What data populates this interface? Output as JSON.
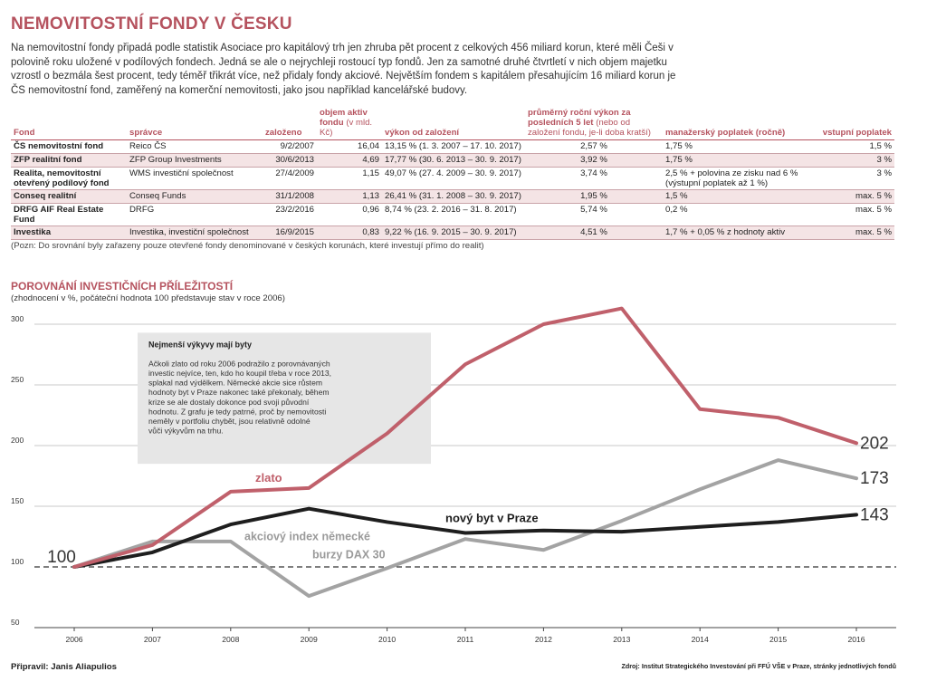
{
  "title": "NEMOVITOSTNÍ FONDY V ČESKU",
  "intro": "Na nemovitostní fondy připadá podle statistik Asociace pro kapitálový trh jen zhruba pět procent z celkových 456 miliard korun, které měli Češi v polovině roku uložené v podílových fondech. Jedná se ale o nejrychleji rostoucí typ fondů. Jen za samotné druhé čtvrtletí v nich objem majetku vzrostl o bezmála šest procent, tedy téměř třikrát více, než přidaly fondy akciové. Největším fondem s kapitálem přesahujícím 16 miliard korun je ČS nemovitostní fond, zaměřený na komerční nemovitosti, jako jsou například kancelářské budovy.",
  "table": {
    "headers": {
      "fund": "Fond",
      "manager": "správce",
      "founded": "založeno",
      "assets": "objem aktiv fondu",
      "assets_unit": "(v mld. Kč)",
      "performance": "výkon od založení",
      "avg": "průměrný roční výkon za posledních 5 let",
      "avg_note": "(nebo od založení fondu, je-li doba kratší)",
      "fee": "manažerský poplatek (ročně)",
      "entry": "vstupní poplatek"
    },
    "rows": [
      {
        "fund": "ČS nemovitostní fond",
        "manager": "Reico ČS",
        "founded": "9/2/2007",
        "assets": "16,04",
        "performance": "13,15 % (1. 3. 2007 – 17. 10. 2017)",
        "avg": "2,57 %",
        "fee": "1,75 %",
        "entry": "1,5 %"
      },
      {
        "fund": "ZFP realitní fond",
        "manager": "ZFP Group Investments",
        "founded": "30/6/2013",
        "assets": "4,69",
        "performance": "17,77 % (30. 6. 2013 – 30. 9. 2017)",
        "avg": "3,92 %",
        "fee": "1,75 %",
        "entry": "3 %"
      },
      {
        "fund": "Realita, nemovitostní otevřený podílový fond",
        "manager": "WMS investiční společnost",
        "founded": "27/4/2009",
        "assets": "1,15",
        "performance": "49,07 % (27. 4. 2009 – 30. 9. 2017)",
        "avg": "3,74 %",
        "fee": "2,5 % + polovina ze zisku nad 6 % (výstupní poplatek až 1 %)",
        "entry": "3 %"
      },
      {
        "fund": "Conseq realitní",
        "manager": "Conseq Funds",
        "founded": "31/1/2008",
        "assets": "1,13",
        "performance": "26,41 % (31. 1. 2008 – 30. 9. 2017)",
        "avg": "1,95 %",
        "fee": "1,5 %",
        "entry": "max. 5 %"
      },
      {
        "fund": "DRFG AIF Real Estate Fund",
        "manager": "DRFG",
        "founded": "23/2/2016",
        "assets": "0,96",
        "performance": "8,74 % (23. 2. 2016 – 31. 8. 2017)",
        "avg": "5,74 %",
        "fee": "0,2 %",
        "entry": "max. 5 %"
      },
      {
        "fund": "Investika",
        "manager": "Investika, investiční společnost",
        "founded": "16/9/2015",
        "assets": "0,83",
        "performance": "9,22 % (16. 9. 2015 – 30. 9. 2017)",
        "avg": "4,51 %",
        "fee": "1,7 % + 0,05 % z hodnoty aktiv",
        "entry": "max. 5 %"
      }
    ]
  },
  "note": "(Pozn: Do srovnání byly zařazeny pouze otevřené fondy denominované v českých korunách, které investují přímo do realit)",
  "chart_data": {
    "type": "line",
    "title": "POROVNÁNÍ INVESTIČNÍCH PŘÍLEŽITOSTÍ",
    "subtitle": "(zhodnocení v %, počáteční hodnota 100 představuje stav v roce 2006)",
    "x": [
      "2006",
      "2007",
      "2008",
      "2009",
      "2010",
      "2011",
      "2012",
      "2013",
      "2014",
      "2015",
      "2016"
    ],
    "ylim": [
      50,
      300
    ],
    "yticks": [
      "50",
      "100",
      "150",
      "200",
      "250",
      "300"
    ],
    "grid": true,
    "baseline": 100,
    "start_label": "100",
    "series": [
      {
        "name": "zlato",
        "color": "#c0606b",
        "values": [
          100,
          118,
          162,
          165,
          210,
          267,
          300,
          313,
          230,
          223,
          202
        ],
        "end_label": "202"
      },
      {
        "name": "nový byt v Praze",
        "color": "#1e1e1e",
        "values": [
          100,
          112,
          135,
          148,
          137,
          128,
          130,
          129,
          133,
          137,
          143
        ],
        "end_label": "143"
      },
      {
        "name": "akciový index německé burzy DAX 30",
        "label_lines": [
          "akciový index německé",
          "burzy DAX 30"
        ],
        "color": "#a3a3a3",
        "values": [
          100,
          121,
          121,
          76,
          99,
          123,
          114,
          138,
          164,
          188,
          173
        ],
        "end_label": "173"
      }
    ],
    "annotation": {
      "title": "Nejmenší výkyvy mají byty",
      "lines": [
        "Ačkoli zlato od roku 2006 podražilo z porovnávaných",
        "investic nejvíce, ten, kdo ho koupil třeba v roce 2013,",
        "splakal nad výdělkem. Německé akcie sice růstem",
        "hodnoty byt v Praze nakonec také překonaly, během",
        "krize se ale dostaly dokonce pod svoji původní",
        "hodnotu. Z grafu je tedy patrné, proč by nemovitosti",
        "neměly v portfoliu chybět, jsou relativně odolné",
        "vůči výkyvům na trhu."
      ]
    }
  },
  "footer": {
    "author": "Připravil: Janis Aliapulios",
    "source": "Zdroj: Institut Strategického Investování při FFÚ VŠE v Praze, stránky jednotlivých fondů"
  }
}
